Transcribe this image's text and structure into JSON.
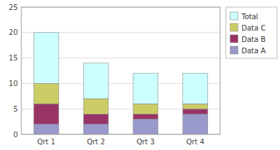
{
  "chart_data": {
    "type": "bar",
    "stacked": true,
    "categories": [
      "Qrt 1",
      "Qrt 2",
      "Qrt 3",
      "Qrt 4"
    ],
    "series": [
      {
        "name": "Data A",
        "color": "#9999cc",
        "values": [
          2,
          2,
          3,
          4
        ]
      },
      {
        "name": "Data B",
        "color": "#993366",
        "values": [
          4,
          2,
          1,
          1
        ]
      },
      {
        "name": "Data C",
        "color": "#cccc66",
        "values": [
          4,
          3,
          2,
          1
        ]
      },
      {
        "name": "Total",
        "color": "#ccffff",
        "values": [
          10,
          7,
          6,
          6
        ]
      }
    ],
    "ylim": [
      0,
      25
    ],
    "yticks": [
      0,
      5,
      10,
      15,
      20,
      25
    ],
    "grid": true,
    "legend": "right"
  }
}
